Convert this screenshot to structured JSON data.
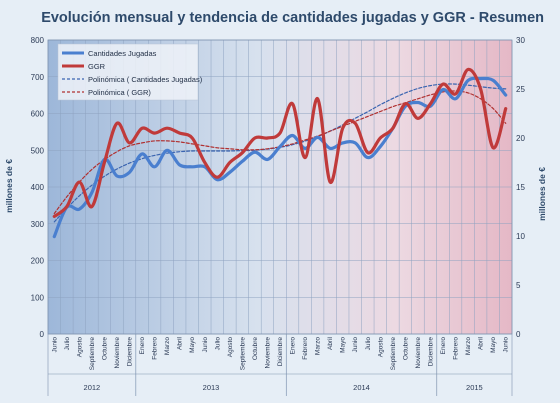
{
  "chart_data": {
    "type": "line",
    "title": "Evolución mensual y tendencia de cantidades jugadas y GGR - Resumen",
    "ylabel_left": "millones de €",
    "ylabel_right": "millones de €",
    "ylim_left": [
      0,
      800
    ],
    "ylim_right": [
      0,
      30
    ],
    "yticks_left": [
      "0",
      "100",
      "200",
      "300",
      "400",
      "500",
      "600",
      "700",
      "800"
    ],
    "yticks_right": [
      "0",
      "5",
      "10",
      "15",
      "20",
      "25",
      "30"
    ],
    "grid": true,
    "legend_position": "top-left",
    "x": [
      "Junio",
      "Julio",
      "Agosto",
      "Septiembre",
      "Octubre",
      "Noviembre",
      "Diciembre",
      "Enero",
      "Febrero",
      "Marzo",
      "Abril",
      "Mayo",
      "Junio",
      "Julio",
      "Agosto",
      "Septiembre",
      "Octubre",
      "Noviembre",
      "Diciembre",
      "Enero",
      "Febrero",
      "Marzo",
      "Abril",
      "Mayo",
      "Junio",
      "Julio",
      "Agosto",
      "Septiembre",
      "Octubre",
      "Noviembre",
      "Diciembre",
      "Enero",
      "Febrero",
      "Marzo",
      "Abril",
      "Mayo",
      "Junio"
    ],
    "years": [
      {
        "label": "2012",
        "start": 0,
        "end": 6
      },
      {
        "label": "2013",
        "start": 7,
        "end": 18
      },
      {
        "label": "2014",
        "start": 19,
        "end": 30
      },
      {
        "label": "2015",
        "start": 31,
        "end": 36
      }
    ],
    "series": [
      {
        "name": "Cantidades Jugadas",
        "axis": "left",
        "color": "#4a7fcf",
        "width": 3.2,
        "values": [
          265,
          345,
          340,
          385,
          475,
          430,
          440,
          490,
          455,
          500,
          460,
          455,
          455,
          420,
          440,
          470,
          495,
          475,
          510,
          540,
          505,
          535,
          505,
          520,
          520,
          480,
          510,
          560,
          620,
          630,
          620,
          665,
          640,
          690,
          695,
          690,
          650
        ]
      },
      {
        "name": "GGR",
        "axis": "right",
        "color": "#c03a3a",
        "width": 3.2,
        "values": [
          12.0,
          13.0,
          15.5,
          13.0,
          17.5,
          21.5,
          19.5,
          21.0,
          20.5,
          21.0,
          20.5,
          20.0,
          17.5,
          16.0,
          17.5,
          18.5,
          20.0,
          20.0,
          20.5,
          23.5,
          18.0,
          24.0,
          15.5,
          21.0,
          21.5,
          18.5,
          20.0,
          21.0,
          23.5,
          22.0,
          23.5,
          25.5,
          24.5,
          27.0,
          25.0,
          19.0,
          23.0
        ]
      },
      {
        "name": "Polinómica ( Cantidades Jugadas)",
        "axis": "left",
        "color": "#3a64b0",
        "width": 1.2,
        "dash": "3,2",
        "values": [
          305,
          342,
          376,
          405,
          429,
          449,
          465,
          477,
          486,
          492,
          496,
          498,
          498,
          498,
          498,
          499,
          500,
          503,
          508,
          515,
          525,
          537,
          552,
          569,
          587,
          605,
          624,
          641,
          656,
          668,
          676,
          680,
          680,
          677,
          673,
          669,
          667
        ]
      },
      {
        "name": "Polinómica ( GGR)",
        "axis": "right",
        "color": "#b03030",
        "width": 1.2,
        "dash": "3,2",
        "values": [
          12.3,
          14.0,
          15.5,
          16.8,
          17.8,
          18.6,
          19.2,
          19.5,
          19.7,
          19.7,
          19.6,
          19.4,
          19.2,
          19.0,
          18.9,
          18.8,
          18.8,
          18.9,
          19.1,
          19.4,
          19.8,
          20.2,
          20.7,
          21.2,
          21.7,
          22.2,
          22.7,
          23.2,
          23.6,
          24.0,
          24.4,
          24.7,
          24.8,
          24.6,
          24.0,
          23.0,
          21.5
        ]
      }
    ]
  }
}
